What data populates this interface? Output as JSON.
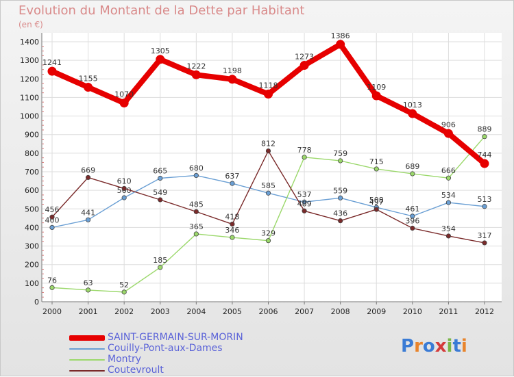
{
  "header": {
    "title": "Evolution du Montant de la Dette par Habitant",
    "subtitle": "(en €)"
  },
  "brand": {
    "name": "Proxiti"
  },
  "chart_data": {
    "type": "line",
    "title": "Evolution du Montant de la Dette par Habitant",
    "subtitle": "(en €)",
    "xlabel": "",
    "ylabel": "",
    "x": [
      "2000",
      "2001",
      "2002",
      "2003",
      "2004",
      "2005",
      "2006",
      "2007",
      "2008",
      "2009",
      "2010",
      "2011",
      "2012"
    ],
    "yticks": [
      0,
      100,
      200,
      300,
      400,
      500,
      600,
      700,
      800,
      900,
      1000,
      1100,
      1200,
      1300,
      1400
    ],
    "ylim": [
      0,
      1400
    ],
    "grid": true,
    "legend_position": "bottom-left",
    "series": [
      {
        "name": "SAINT-GERMAIN-SUR-MORIN",
        "color": "#e60000",
        "values": [
          1241,
          1155,
          1070,
          1305,
          1222,
          1198,
          1118,
          1273,
          1386,
          1109,
          1013,
          906,
          744
        ]
      },
      {
        "name": "Couilly-Pont-aux-Dames",
        "color": "#6a9fd4",
        "values": [
          400,
          441,
          560,
          665,
          680,
          637,
          585,
          537,
          559,
          508,
          461,
          534,
          513
        ]
      },
      {
        "name": "Montry",
        "color": "#9bd86b",
        "values": [
          76,
          63,
          52,
          185,
          365,
          346,
          329,
          778,
          759,
          715,
          689,
          666,
          889
        ]
      },
      {
        "name": "Coutevroult",
        "color": "#7a2a2a",
        "values": [
          456,
          669,
          610,
          549,
          485,
          418,
          812,
          489,
          436,
          497,
          396,
          354,
          317
        ]
      }
    ],
    "data_labels": {
      "SAINT-GERMAIN-SUR-MORIN": [
        "1241",
        "1155",
        "1070",
        "1305",
        "1222",
        "1198",
        "1118",
        "1273",
        "1386",
        "1109",
        "1013",
        "906",
        "744"
      ],
      "Couilly-Pont-aux-Dames": [
        "400",
        "441",
        "560",
        "665",
        "680",
        "637",
        "585",
        "537",
        "559",
        "508",
        "461",
        "534",
        "513"
      ],
      "Montry": [
        "76",
        "63",
        "52",
        "185",
        "365",
        "346",
        "329",
        "778",
        "759",
        "715",
        "689",
        "666",
        "889"
      ],
      "Coutevroult": [
        "456",
        "669",
        "610",
        "549",
        "485",
        "418",
        "812",
        "489",
        "436",
        "497",
        "396",
        "354",
        "317"
      ]
    }
  }
}
